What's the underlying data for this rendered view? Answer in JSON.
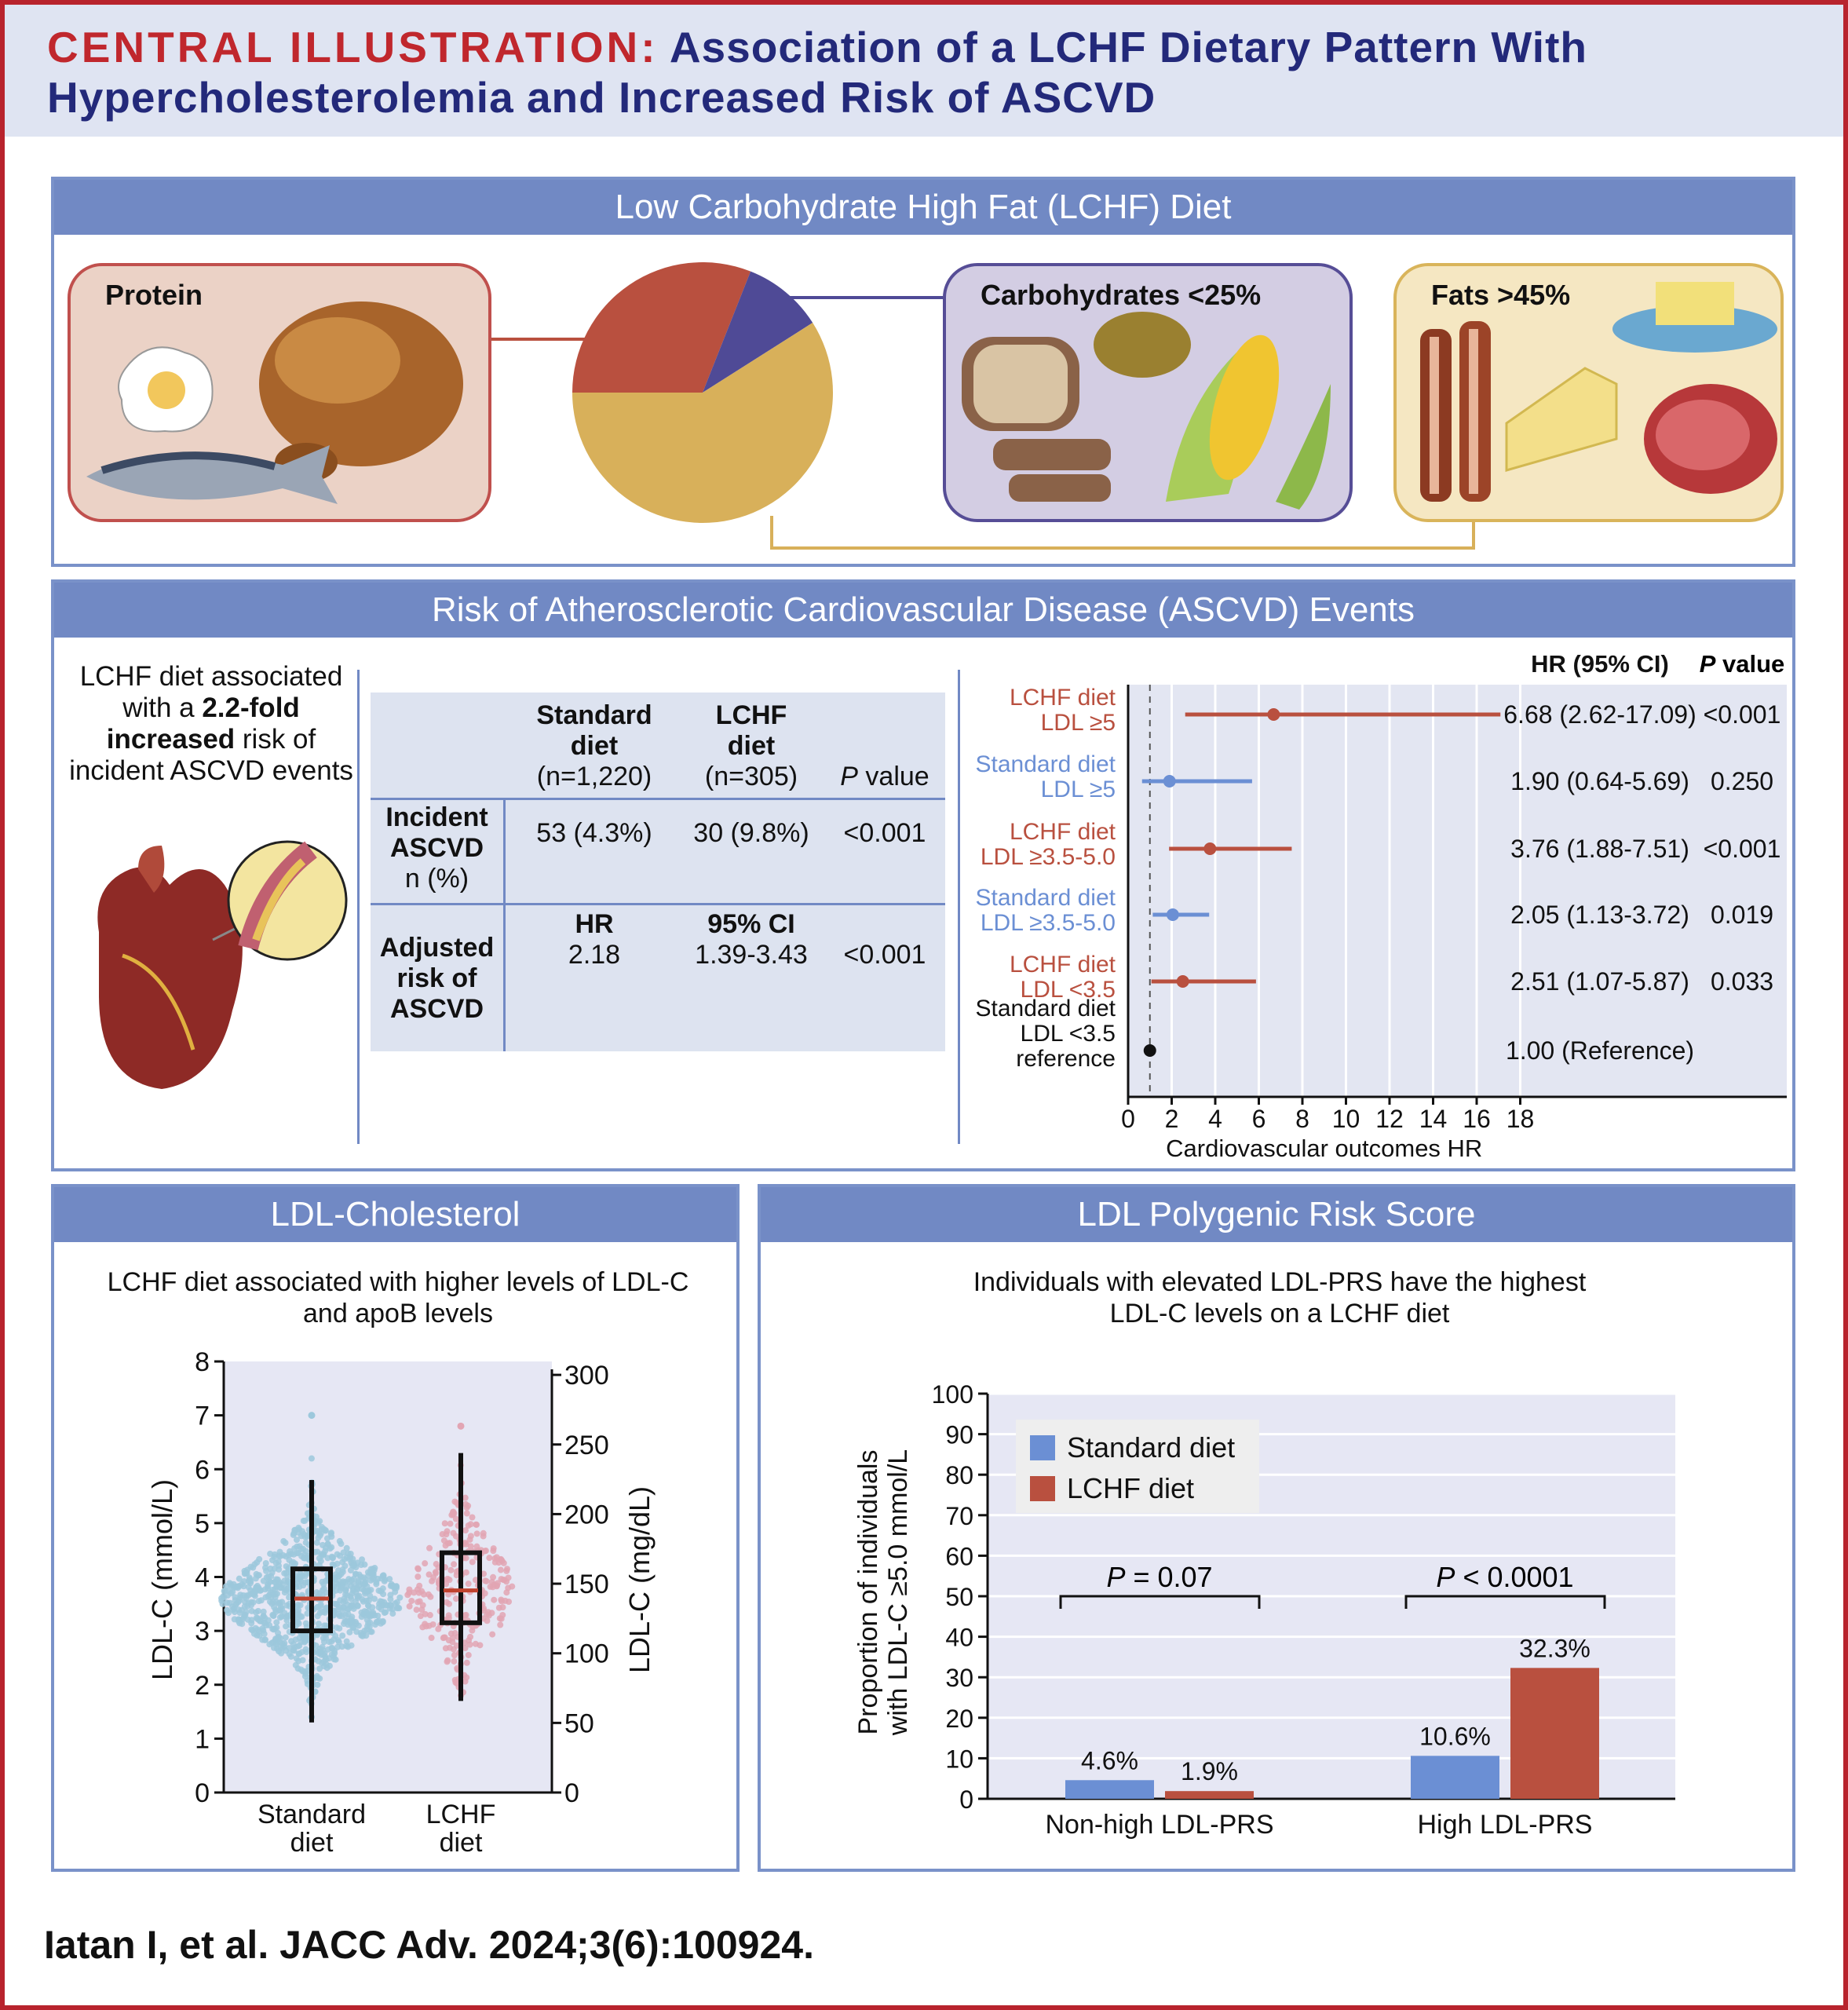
{
  "title": {
    "prefix": "CENTRAL ILLUSTRATION:",
    "line1": "Association of a LCHF Dietary Pattern With",
    "line2": "Hypercholesterolemia and Increased Risk of ASCVD"
  },
  "diet_panel": {
    "header": "Low Carbohydrate High Fat (LCHF) Diet",
    "protein_label": "Protein",
    "carbs_label": "Carbohydrates <25%",
    "fats_label": "Fats >45%",
    "pie": {
      "protein": 31,
      "carbohydrates": 10,
      "fats": 59
    },
    "colors": {
      "protein": "#b9503f",
      "carbohydrates": "#4f4a96",
      "fats": "#d8b05a"
    }
  },
  "risk_panel": {
    "header": "Risk of Atherosclerotic Cardiovascular Disease (ASCVD) Events",
    "summary": {
      "pre": "LCHF diet associated with a ",
      "bold1": "2.2-fold",
      "bold2": "increased",
      "post": " risk of incident ASCVD events"
    },
    "table": {
      "col1": [
        "Standard",
        "diet",
        "(n=1,220)"
      ],
      "col2": [
        "LCHF",
        "diet",
        "(n=305)"
      ],
      "col3_italic": "P",
      "col3": " value",
      "row1_label": [
        "Incident",
        "ASCVD",
        "n (%)"
      ],
      "row1": [
        "53 (4.3%)",
        "30 (9.8%)",
        "<0.001"
      ],
      "row2_label": [
        "Adjusted",
        "risk of",
        "ASCVD"
      ],
      "row2_sub": [
        "HR",
        "95% CI"
      ],
      "row2": [
        "2.18",
        "1.39-3.43",
        "<0.001"
      ]
    },
    "forest": {
      "hr_header": "HR (95% CI)",
      "p_header_italic": "P",
      "p_header": " value",
      "xlabel": "Cardiovascular outcomes HR",
      "xticks": [
        0,
        2,
        4,
        6,
        8,
        10,
        12,
        14,
        16,
        18
      ],
      "reference_line": 1,
      "rows": [
        {
          "label": [
            "LCHF diet",
            "LDL ≥5"
          ],
          "group": "lchf",
          "hr": 6.68,
          "lo": 2.62,
          "hi": 17.09,
          "text": "6.68 (2.62-17.09)",
          "p": "<0.001"
        },
        {
          "label": [
            "Standard diet",
            "LDL ≥5"
          ],
          "group": "standard",
          "hr": 1.9,
          "lo": 0.64,
          "hi": 5.69,
          "text": "1.90 (0.64-5.69)",
          "p": "0.250"
        },
        {
          "label": [
            "LCHF diet",
            "LDL ≥3.5-5.0"
          ],
          "group": "lchf",
          "hr": 3.76,
          "lo": 1.88,
          "hi": 7.51,
          "text": "3.76 (1.88-7.51)",
          "p": "<0.001"
        },
        {
          "label": [
            "Standard diet",
            "LDL ≥3.5-5.0"
          ],
          "group": "standard",
          "hr": 2.05,
          "lo": 1.13,
          "hi": 3.72,
          "text": "2.05 (1.13-3.72)",
          "p": "0.019"
        },
        {
          "label": [
            "LCHF diet",
            "LDL <3.5"
          ],
          "group": "lchf",
          "hr": 2.51,
          "lo": 1.07,
          "hi": 5.87,
          "text": "2.51 (1.07-5.87)",
          "p": "0.033"
        },
        {
          "label": [
            "Standard diet",
            "LDL <3.5",
            "reference"
          ],
          "group": "reference",
          "hr": 1.0,
          "lo": 1.0,
          "hi": 1.0,
          "text": "1.00 (Reference)",
          "p": ""
        }
      ],
      "colors": {
        "lchf": "#b9503f",
        "standard": "#6b8fd4",
        "reference": "#111111"
      }
    }
  },
  "chart_data": [
    {
      "type": "scatter",
      "title": "LDL-Cholesterol",
      "subtitle": [
        "LCHF diet associated with higher levels of LDL-C",
        "and apoB levels"
      ],
      "ylabel": "LDL-C (mmol/L)",
      "ylabel_right": "LDL-C (mg/dL)",
      "ylim": [
        0,
        8
      ],
      "yticks": [
        0,
        1,
        2,
        3,
        4,
        5,
        6,
        7,
        8
      ],
      "yticks_right": [
        0,
        50,
        100,
        150,
        200,
        250,
        300
      ],
      "categories": [
        [
          "Standard",
          "diet"
        ],
        [
          "LCHF",
          "diet"
        ]
      ],
      "boxes": [
        {
          "name": "Standard diet",
          "whisker_low": 1.3,
          "q1": 3.0,
          "median": 3.6,
          "q3": 4.15,
          "whisker_high": 5.8,
          "max_point": 7.0,
          "color": "#9cc8dc"
        },
        {
          "name": "LCHF diet",
          "whisker_low": 1.7,
          "q1": 3.15,
          "median": 3.75,
          "q3": 4.45,
          "whisker_high": 6.3,
          "max_point": 6.8,
          "color": "#e2a5b3"
        }
      ]
    },
    {
      "type": "bar",
      "title": "LDL Polygenic Risk Score",
      "subtitle": [
        "Individuals with elevated LDL-PRS have the highest",
        "LDL-C levels on a LCHF diet"
      ],
      "ylabel": [
        "Proportion of individuals",
        "with LDL-C ≥5.0 mmol/L"
      ],
      "ylim": [
        0,
        100
      ],
      "yticks": [
        0,
        10,
        20,
        30,
        40,
        50,
        60,
        70,
        80,
        90,
        100
      ],
      "categories": [
        "Non-high LDL-PRS",
        "High LDL-PRS"
      ],
      "series": [
        {
          "name": "Standard diet",
          "values": [
            4.6,
            10.6
          ],
          "labels": [
            "4.6%",
            "10.6%"
          ],
          "color": "#6b8fd4"
        },
        {
          "name": "LCHF diet",
          "values": [
            1.9,
            32.3
          ],
          "labels": [
            "1.9%",
            "32.3%"
          ],
          "color": "#b9503f"
        }
      ],
      "annotations": [
        {
          "p_italic": "P",
          "text": " = 0.07"
        },
        {
          "p_italic": "P",
          "text": " < 0.0001"
        }
      ],
      "legend": "top-left"
    }
  ],
  "citation": "Iatan I, et al. JACC Adv. 2024;3(6):100924."
}
